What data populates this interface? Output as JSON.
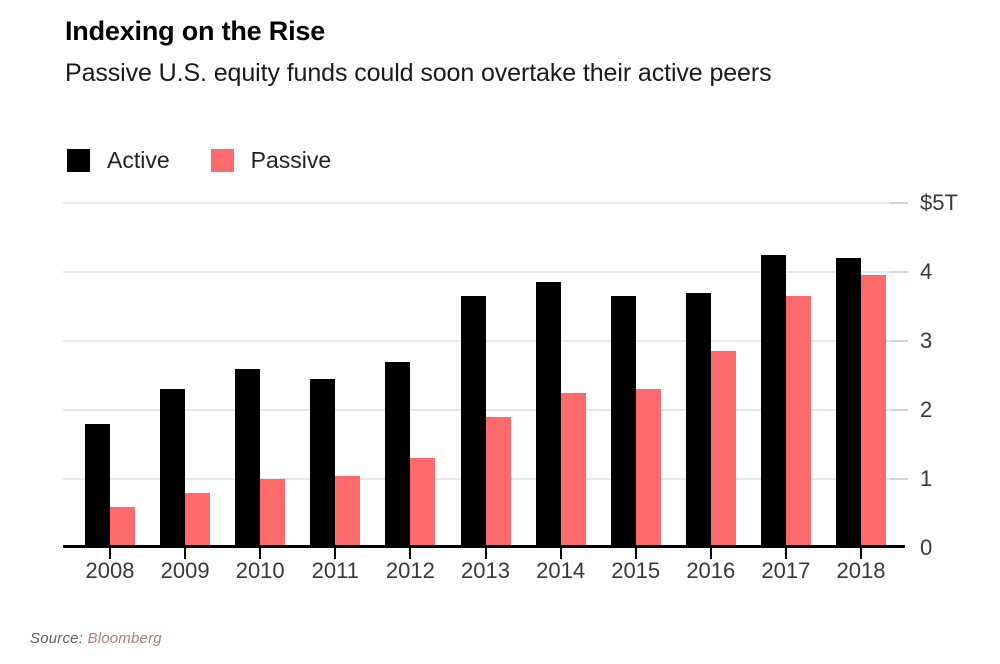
{
  "header": {
    "title": "Indexing on the Rise",
    "subtitle": "Passive U.S. equity funds could soon overtake their active peers"
  },
  "chart_data": {
    "type": "bar",
    "title": "Indexing on the Rise",
    "subtitle": "Passive U.S. equity funds could soon overtake their active peers",
    "unit": "trillions of US dollars",
    "categories": [
      "2008",
      "2009",
      "2010",
      "2011",
      "2012",
      "2013",
      "2014",
      "2015",
      "2016",
      "2017",
      "2018"
    ],
    "series": [
      {
        "name": "Active",
        "color": "#000000",
        "values": [
          1.8,
          2.3,
          2.6,
          2.45,
          2.7,
          3.65,
          3.85,
          3.65,
          3.7,
          4.25,
          4.2
        ]
      },
      {
        "name": "Passive",
        "color": "#fc6a6b",
        "values": [
          0.6,
          0.8,
          1.0,
          1.05,
          1.3,
          1.9,
          2.25,
          2.3,
          2.85,
          3.65,
          3.95
        ]
      }
    ],
    "y_axis": {
      "min": 0,
      "max": 5,
      "position": "right",
      "tick_values": [
        0,
        1,
        2,
        3,
        4,
        5
      ],
      "tick_labels": [
        "0",
        "1",
        "2",
        "3",
        "4",
        "$5T"
      ]
    },
    "grid": "horizontal",
    "legend_position": "top-left"
  },
  "footer": {
    "source_label": "Source:",
    "source_name": "Bloomberg"
  }
}
